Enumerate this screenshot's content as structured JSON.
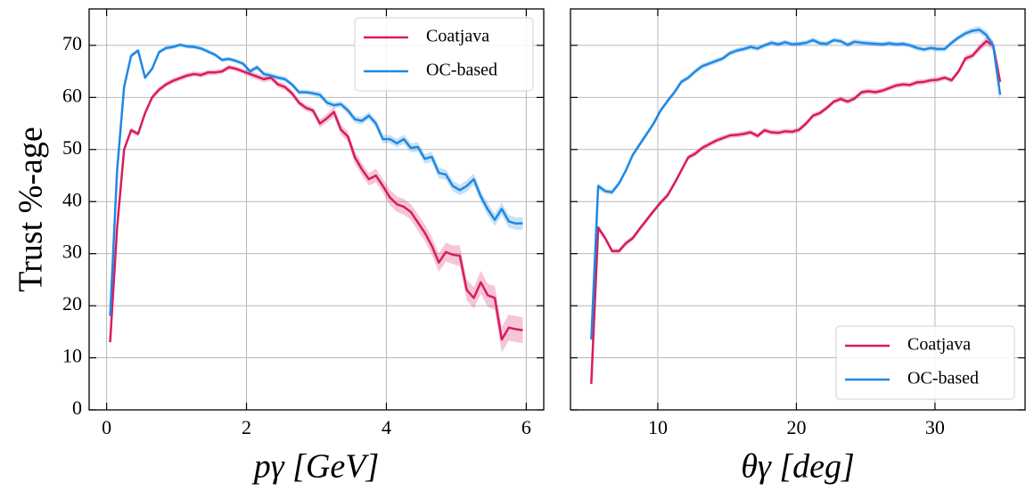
{
  "chart_data": [
    {
      "type": "line",
      "ylabel": "Trust %-age",
      "xlabel": "pγ [GeV]",
      "xlim": [
        -0.25,
        6.25
      ],
      "ylim": [
        0,
        77
      ],
      "xticks": [
        0,
        2,
        4,
        6
      ],
      "yticks": [
        0,
        10,
        20,
        30,
        40,
        50,
        60,
        70
      ],
      "grid": true,
      "legend": "upper right",
      "x": [
        0.05,
        0.15,
        0.25,
        0.35,
        0.45,
        0.55,
        0.65,
        0.75,
        0.85,
        0.95,
        1.05,
        1.15,
        1.25,
        1.35,
        1.45,
        1.55,
        1.65,
        1.75,
        1.85,
        1.95,
        2.05,
        2.15,
        2.25,
        2.35,
        2.45,
        2.55,
        2.65,
        2.75,
        2.85,
        2.95,
        3.05,
        3.15,
        3.25,
        3.35,
        3.45,
        3.55,
        3.65,
        3.75,
        3.85,
        3.95,
        4.05,
        4.15,
        4.25,
        4.35,
        4.45,
        4.55,
        4.65,
        4.75,
        4.85,
        4.95,
        5.05,
        5.15,
        5.25,
        5.35,
        5.45,
        5.55,
        5.65,
        5.75,
        5.85,
        5.95
      ],
      "series": [
        {
          "name": "Coatjava",
          "color": "#d81b60",
          "values": [
            13,
            35,
            50,
            53.7,
            53,
            57,
            60,
            61.5,
            62.5,
            63.2,
            63.7,
            64.2,
            64.5,
            64.3,
            64.8,
            64.8,
            65,
            65.8,
            65.5,
            65,
            64.5,
            64,
            63.5,
            63.8,
            62.5,
            62,
            60.8,
            59,
            58,
            57.5,
            55,
            56,
            57.2,
            53.8,
            52.5,
            48.5,
            46.2,
            44.3,
            45,
            43,
            40.8,
            39.5,
            39,
            38,
            36,
            34,
            31.5,
            28.3,
            30.3,
            29.8,
            29.6,
            23,
            21.5,
            24.5,
            22,
            21.5,
            13.5,
            15.8,
            15.5,
            15.3
          ],
          "errors": [
            0.5,
            0.5,
            0.5,
            0.5,
            0.5,
            0.5,
            0.5,
            0.5,
            0.5,
            0.5,
            0.5,
            0.5,
            0.5,
            0.5,
            0.5,
            0.5,
            0.5,
            0.5,
            0.5,
            0.5,
            0.6,
            0.6,
            0.6,
            0.6,
            0.6,
            0.6,
            0.6,
            0.6,
            0.6,
            0.6,
            0.8,
            0.8,
            1,
            1,
            1,
            1.2,
            1.2,
            1.2,
            1.3,
            1.3,
            1.5,
            1.5,
            1.5,
            1.5,
            1.6,
            1.6,
            1.7,
            1.8,
            1.8,
            1.8,
            2,
            2,
            2,
            2.2,
            2.2,
            2.3,
            2.5,
            2.5,
            2.5,
            2.5
          ]
        },
        {
          "name": "OC-based",
          "color": "#1e88e5",
          "values": [
            18,
            46,
            62,
            68,
            69,
            63.8,
            65.5,
            68.7,
            69.5,
            69.7,
            70.1,
            69.8,
            69.7,
            69.4,
            68.8,
            68.2,
            67.2,
            67.4,
            67,
            66.5,
            65,
            65.8,
            64.5,
            64.2,
            63.8,
            63.5,
            62.5,
            61,
            61,
            60.8,
            60.5,
            59,
            58.5,
            58.7,
            57.5,
            55.8,
            55.5,
            56.5,
            55,
            52,
            52,
            51.2,
            52,
            50.3,
            50.5,
            48.2,
            48.6,
            45.5,
            45.2,
            43,
            42.2,
            43,
            44.3,
            41,
            38.5,
            36.5,
            38.6,
            36.2,
            35.8,
            35.8
          ],
          "errors": [
            0.4,
            0.4,
            0.4,
            0.4,
            0.4,
            0.4,
            0.4,
            0.4,
            0.4,
            0.4,
            0.4,
            0.4,
            0.4,
            0.4,
            0.4,
            0.4,
            0.4,
            0.4,
            0.4,
            0.4,
            0.5,
            0.5,
            0.5,
            0.5,
            0.5,
            0.5,
            0.5,
            0.5,
            0.5,
            0.5,
            0.6,
            0.6,
            0.6,
            0.6,
            0.7,
            0.7,
            0.7,
            0.7,
            0.8,
            0.8,
            0.8,
            0.8,
            0.9,
            0.9,
            0.9,
            0.9,
            1,
            1,
            1,
            1,
            1,
            1.1,
            1.1,
            1.1,
            1.2,
            1.2,
            1.2,
            1.2,
            1.2,
            1.2
          ]
        }
      ]
    },
    {
      "type": "line",
      "xlabel": "θγ [deg]",
      "xlim": [
        3.7,
        36.5
      ],
      "xticks": [
        10,
        20,
        30
      ],
      "grid": true,
      "legend": "lower right",
      "x": [
        5.2,
        5.7,
        6.2,
        6.7,
        7.2,
        7.7,
        8.2,
        8.7,
        9.2,
        9.7,
        10.2,
        10.7,
        11.2,
        11.7,
        12.2,
        12.7,
        13.2,
        13.7,
        14.2,
        14.7,
        15.2,
        15.7,
        16.2,
        16.7,
        17.2,
        17.7,
        18.2,
        18.7,
        19.2,
        19.7,
        20.2,
        20.7,
        21.2,
        21.7,
        22.2,
        22.7,
        23.2,
        23.7,
        24.2,
        24.7,
        25.2,
        25.7,
        26.2,
        26.7,
        27.2,
        27.7,
        28.2,
        28.7,
        29.2,
        29.7,
        30.2,
        30.7,
        31.2,
        31.7,
        32.2,
        32.7,
        33.2,
        33.7,
        34.2,
        34.7
      ],
      "series": [
        {
          "name": "Coatjava",
          "color": "#d81b60",
          "values": [
            5,
            35,
            33,
            30.5,
            30.5,
            32,
            33,
            34.8,
            36.5,
            38.2,
            39.8,
            41.2,
            43.5,
            46,
            48.5,
            49.2,
            50.3,
            51,
            51.7,
            52.2,
            52.7,
            52.8,
            53,
            53.3,
            52.6,
            53.7,
            53.3,
            53.2,
            53.5,
            53.4,
            53.8,
            55,
            56.5,
            57,
            58,
            59.2,
            59.7,
            59.2,
            59.8,
            61,
            61.2,
            61,
            61.3,
            61.8,
            62.3,
            62.5,
            62.4,
            62.9,
            63,
            63.3,
            63.4,
            63.8,
            63.3,
            65,
            67.5,
            68,
            69.5,
            70.8,
            70,
            63
          ],
          "errors": [
            0.6,
            0.6,
            0.5,
            0.5,
            0.5,
            0.5,
            0.5,
            0.5,
            0.5,
            0.5,
            0.5,
            0.5,
            0.5,
            0.5,
            0.5,
            0.5,
            0.5,
            0.5,
            0.5,
            0.5,
            0.5,
            0.5,
            0.5,
            0.5,
            0.5,
            0.5,
            0.5,
            0.5,
            0.5,
            0.5,
            0.5,
            0.5,
            0.5,
            0.5,
            0.5,
            0.5,
            0.5,
            0.5,
            0.5,
            0.5,
            0.5,
            0.5,
            0.5,
            0.5,
            0.5,
            0.5,
            0.5,
            0.5,
            0.5,
            0.5,
            0.5,
            0.5,
            0.5,
            0.5,
            0.6,
            0.6,
            0.7,
            0.8,
            0.9,
            1.2
          ]
        },
        {
          "name": "OC-based",
          "color": "#1e88e5",
          "values": [
            13.5,
            43,
            42,
            41.8,
            43.5,
            46,
            49,
            51,
            53,
            55,
            57.5,
            59.3,
            61,
            63,
            63.8,
            65,
            66,
            66.5,
            67,
            67.5,
            68.5,
            69,
            69.3,
            69.7,
            69.4,
            70,
            70.5,
            70.2,
            70.6,
            70.2,
            70.3,
            70.5,
            71,
            70.4,
            70.3,
            71,
            70.8,
            70.1,
            70.7,
            70.5,
            70.4,
            70.3,
            70.2,
            70.4,
            70.2,
            70.3,
            70,
            69.5,
            69.2,
            69.5,
            69.3,
            69.3,
            70.5,
            71.5,
            72.3,
            72.8,
            73,
            72,
            70,
            60.5
          ],
          "errors": [
            0.6,
            0.6,
            0.5,
            0.5,
            0.5,
            0.5,
            0.5,
            0.5,
            0.5,
            0.5,
            0.5,
            0.5,
            0.5,
            0.5,
            0.5,
            0.5,
            0.5,
            0.5,
            0.5,
            0.5,
            0.5,
            0.5,
            0.5,
            0.5,
            0.5,
            0.5,
            0.5,
            0.5,
            0.5,
            0.5,
            0.5,
            0.5,
            0.5,
            0.5,
            0.5,
            0.5,
            0.5,
            0.5,
            0.5,
            0.5,
            0.5,
            0.5,
            0.5,
            0.5,
            0.5,
            0.5,
            0.5,
            0.5,
            0.5,
            0.5,
            0.5,
            0.5,
            0.5,
            0.5,
            0.6,
            0.6,
            0.7,
            0.8,
            0.9,
            1.2
          ]
        }
      ]
    }
  ]
}
